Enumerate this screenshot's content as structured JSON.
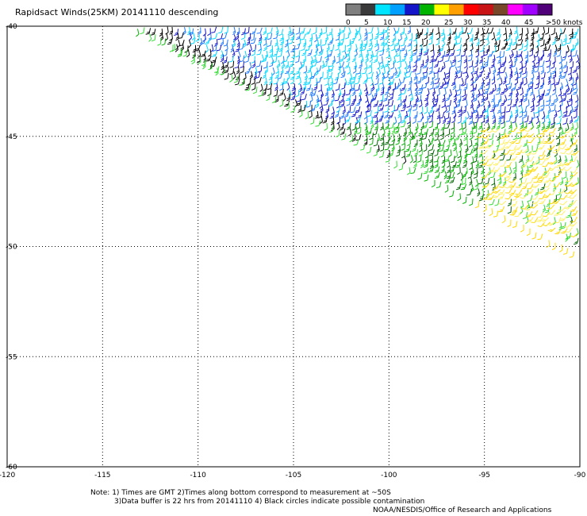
{
  "title": "Rapidsact Winds(25KM) 20141110 descending",
  "legend": {
    "labels": [
      "0",
      "5",
      "10",
      "15",
      "20",
      "25",
      "30",
      "35",
      "40",
      "45",
      ">50 knots"
    ],
    "colors": [
      "#7f7f7f",
      "#3a3a3a",
      "#00e5ff",
      "#00a0ff",
      "#1414c8",
      "#00b400",
      "#ffff00",
      "#ffa000",
      "#ff0000",
      "#c81414",
      "#784628",
      "#ff00ff",
      "#a000ff",
      "#500078"
    ]
  },
  "map": {
    "lon_range": [
      -120,
      -90
    ],
    "lat_range": [
      -60,
      -40
    ],
    "lon_ticks": [
      "-120",
      "-115",
      "-110",
      "-105",
      "-100",
      "-95",
      "-90"
    ],
    "lat_ticks": [
      "-40",
      "-45",
      "-50",
      "-55",
      "-60"
    ]
  },
  "notes": {
    "line1": "Note: 1) Times are GMT 2)Times along bottom correspond to measurement at ~50S",
    "line2": "3)Data buffer is 22 hrs from 20141110 4) Black circles indicate possible contamination",
    "credit": "NOAA/NESDIS/Office of Research and Applications"
  }
}
